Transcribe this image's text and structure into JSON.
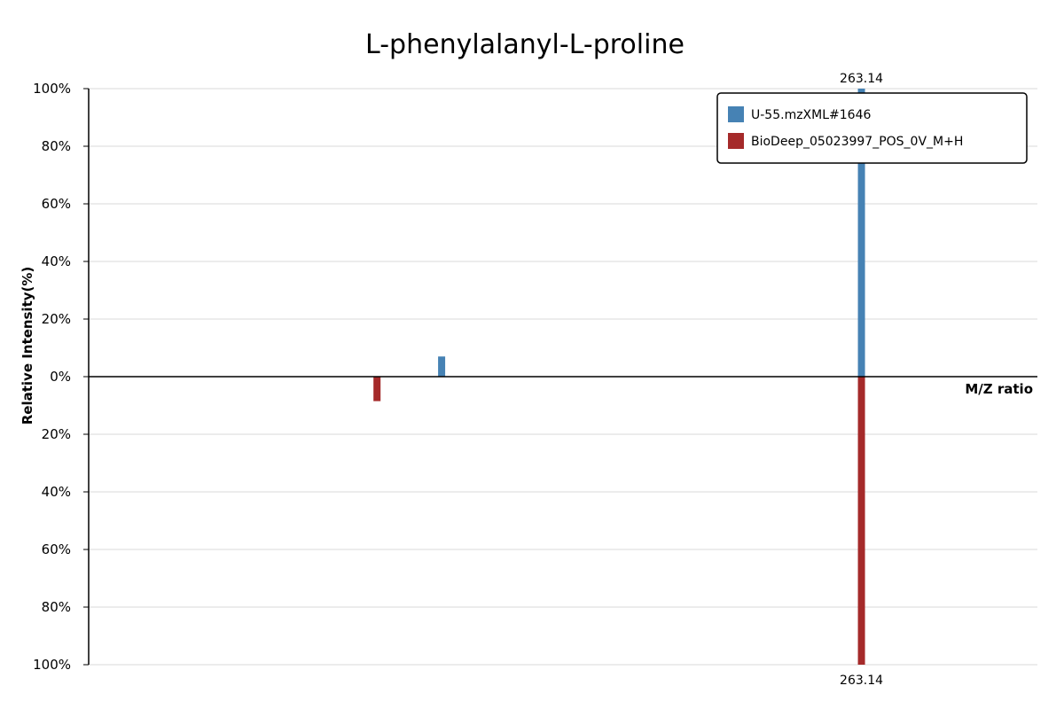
{
  "chart_data": {
    "type": "bar",
    "title": "L-phenylalanyl-L-proline",
    "xlabel": "M/Z ratio",
    "ylabel": "Relative Intensity(%)",
    "ylim": [
      -100,
      100
    ],
    "yticks": [
      "100%",
      "80%",
      "60%",
      "40%",
      "20%",
      "0%",
      "20%",
      "40%",
      "60%",
      "80%",
      "100%"
    ],
    "grid": true,
    "legend_position": "top-right",
    "series": [
      {
        "name": "U-55.mzXML#1646",
        "color": "#4682b4",
        "direction": "up",
        "peaks": [
          {
            "mz": 120.08,
            "intensity": 7,
            "label": ""
          },
          {
            "mz": 263.14,
            "intensity": 100,
            "label": "263.14"
          }
        ]
      },
      {
        "name": "BioDeep_05023997_POS_0V_M+H",
        "color": "#a52a2a",
        "direction": "down",
        "peaks": [
          {
            "mz": 98.06,
            "intensity": 8.5,
            "label": ""
          },
          {
            "mz": 263.14,
            "intensity": 100,
            "label": "263.14"
          }
        ]
      }
    ],
    "xlim": [
      -0.2,
      323.1
    ]
  }
}
